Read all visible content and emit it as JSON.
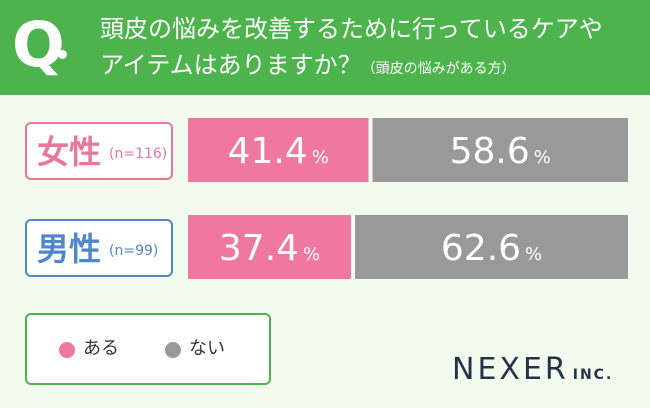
{
  "question": {
    "mark": "Q",
    "line1": "頭皮の悩みを改善するために行っているケアや",
    "line2": "アイテムはありますか？",
    "note": "（頭皮の悩みがある方）"
  },
  "groups": [
    {
      "label": "女性",
      "n": "(n=116)"
    },
    {
      "label": "男性",
      "n": "(n=99)"
    }
  ],
  "chart_data": {
    "type": "bar",
    "stacked": true,
    "orientation": "horizontal",
    "categories": [
      "女性",
      "男性"
    ],
    "series": [
      {
        "name": "ある",
        "values": [
          41.4,
          37.4
        ],
        "color": "#f0779f"
      },
      {
        "name": "ない",
        "values": [
          58.6,
          62.6
        ],
        "color": "#999999"
      }
    ],
    "unit": "%",
    "xlim": [
      0,
      100
    ]
  },
  "legend": {
    "items": [
      {
        "label": "ある",
        "color": "#f0779f"
      },
      {
        "label": "ない",
        "color": "#999999"
      }
    ]
  },
  "logo": {
    "main": "NEXER",
    "sub": "INC."
  }
}
